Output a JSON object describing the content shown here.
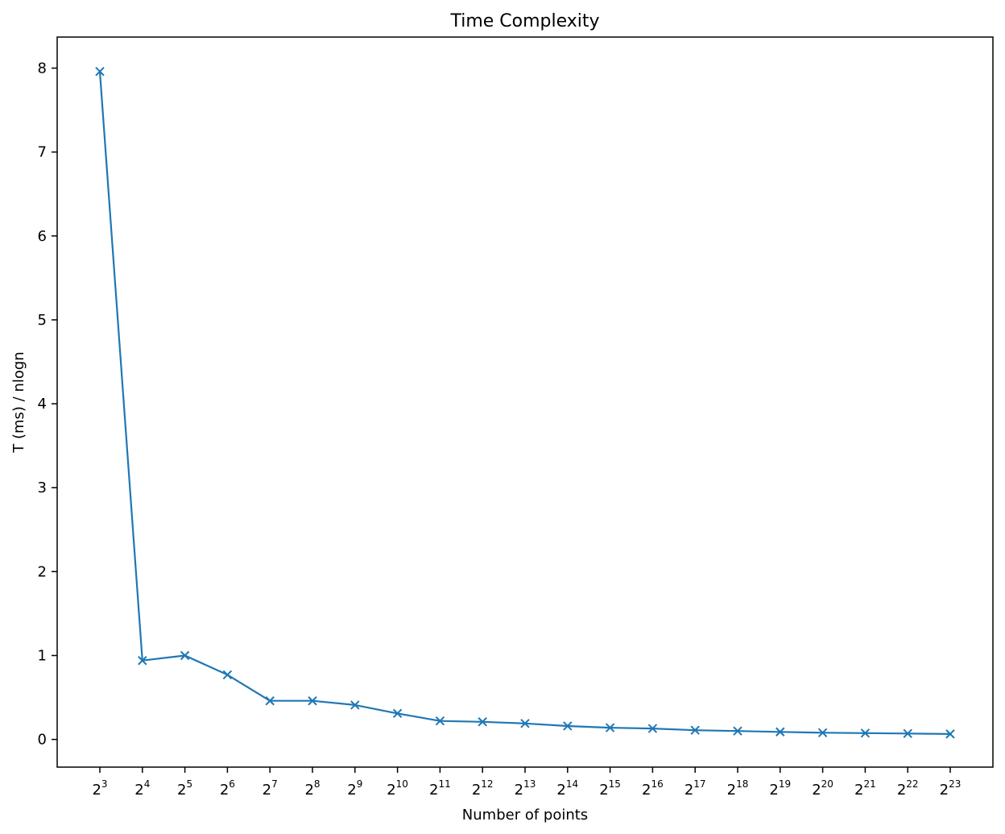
{
  "chart_data": {
    "type": "line",
    "title": "Time Complexity",
    "xlabel": "Number of points",
    "ylabel": "T (ms) / nlogn",
    "x_tick_base": "2",
    "x": [
      3,
      4,
      5,
      6,
      7,
      8,
      9,
      10,
      11,
      12,
      13,
      14,
      15,
      16,
      17,
      18,
      19,
      20,
      21,
      22,
      23
    ],
    "x_scale": "log2",
    "series": [
      {
        "values": [
          7.96,
          0.94,
          1.0,
          0.77,
          0.46,
          0.46,
          0.41,
          0.31,
          0.22,
          0.21,
          0.19,
          0.16,
          0.14,
          0.13,
          0.11,
          0.1,
          0.09,
          0.08,
          0.075,
          0.07,
          0.065
        ],
        "color": "#1f77b4",
        "marker": "x"
      }
    ],
    "y_ticks": [
      "0",
      "1",
      "2",
      "3",
      "4",
      "5",
      "6",
      "7",
      "8"
    ],
    "ylim": [
      -0.33,
      8.37
    ],
    "grid": false,
    "legend": "none"
  }
}
